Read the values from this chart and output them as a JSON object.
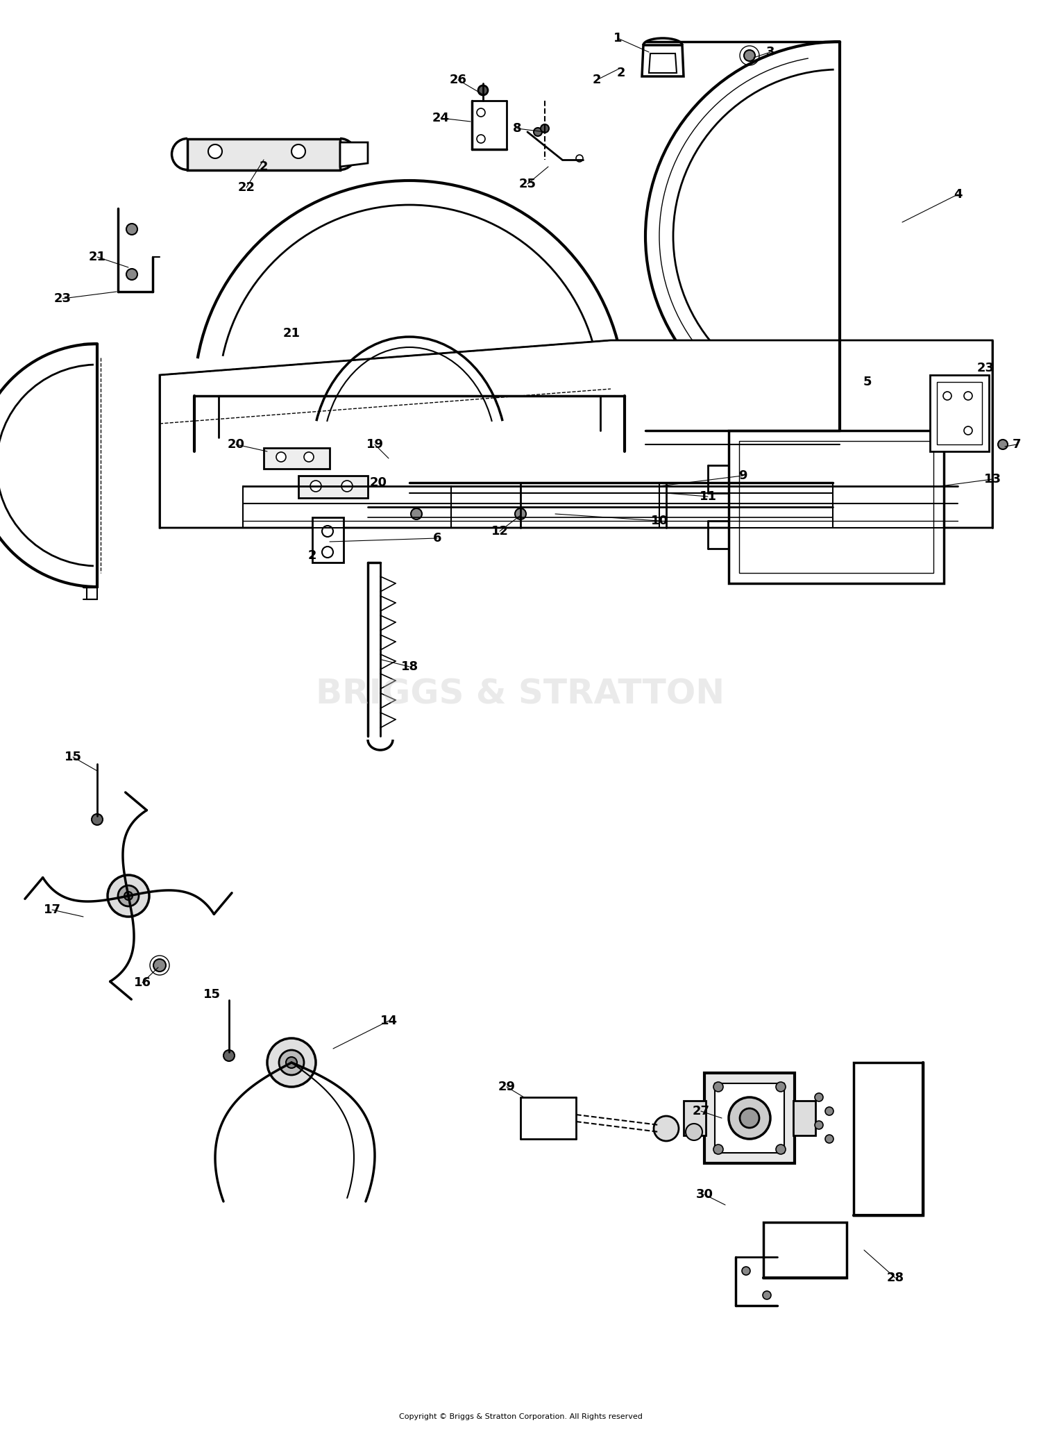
{
  "bg_color": "#ffffff",
  "line_color": "#000000",
  "fig_width": 15.0,
  "fig_height": 20.62,
  "dpi": 100,
  "copyright": "Copyright © Briggs & Stratton Corporation. All Rights reserved",
  "watermark": "BRIGGS & STRATTON"
}
